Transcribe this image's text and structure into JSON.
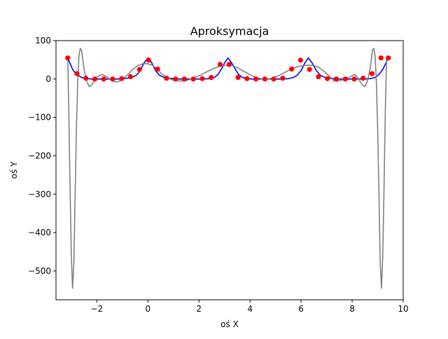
{
  "chart_data": {
    "type": "line",
    "title": "Aproksymacja",
    "xlabel": "oś X",
    "ylabel": "oś Y",
    "xlim": [
      -3.6,
      10.0
    ],
    "ylim": [
      -575,
      100
    ],
    "x_ticks": [
      -2,
      0,
      2,
      4,
      6,
      8,
      10
    ],
    "x_tick_labels": [
      "−2",
      "0",
      "2",
      "4",
      "6",
      "8",
      "10"
    ],
    "y_ticks": [
      100,
      0,
      -100,
      -200,
      -300,
      -400,
      -500
    ],
    "y_tick_labels": [
      "100",
      "0",
      "−100",
      "−200",
      "−300",
      "−400",
      "−500"
    ],
    "grid": false,
    "series": [
      {
        "kind": "line",
        "color": "#0000ff",
        "x": [
          -3.14,
          -2.95,
          -2.8,
          -2.6,
          -2.4,
          -2.2,
          -2.0,
          -1.8,
          -1.6,
          -1.4,
          -1.2,
          -1.0,
          -0.8,
          -0.6,
          -0.45,
          -0.3,
          -0.15,
          0.0,
          0.15,
          0.3,
          0.45,
          0.6,
          0.8,
          1.0,
          1.2,
          1.4,
          1.6,
          1.8,
          2.0,
          2.2,
          2.4,
          2.6,
          2.75,
          2.9,
          3.0,
          3.14,
          3.28,
          3.4,
          3.55,
          3.7,
          3.9,
          4.1,
          4.3,
          4.5,
          4.7,
          4.9,
          5.1,
          5.3,
          5.5,
          5.7,
          5.85,
          6.0,
          6.15,
          6.28,
          6.43,
          6.6,
          6.75,
          6.9,
          7.1,
          7.3,
          7.5,
          7.7,
          7.9,
          8.1,
          8.3,
          8.5,
          8.7,
          8.9,
          9.05,
          9.2,
          9.42
        ],
        "y": [
          55,
          25,
          12,
          4,
          1,
          0,
          0,
          0,
          0,
          0,
          0,
          1,
          2,
          5,
          10,
          22,
          42,
          55,
          42,
          22,
          10,
          5,
          2,
          1,
          0,
          0,
          0,
          0,
          0,
          0,
          1,
          4,
          12,
          28,
          42,
          55,
          42,
          28,
          12,
          4,
          1,
          0,
          0,
          0,
          0,
          0,
          0,
          0,
          1,
          4,
          10,
          22,
          42,
          55,
          42,
          22,
          10,
          5,
          2,
          1,
          0,
          0,
          0,
          0,
          0,
          0,
          1,
          4,
          12,
          25,
          55
        ]
      },
      {
        "kind": "line",
        "color": "#808080",
        "x": [
          -3.14,
          -3.1,
          -3.05,
          -3.0,
          -2.95,
          -2.9,
          -2.85,
          -2.8,
          -2.75,
          -2.7,
          -2.65,
          -2.6,
          -2.55,
          -2.5,
          -2.4,
          -2.3,
          -2.2,
          -2.1,
          -2.0,
          -1.8,
          -1.6,
          -1.4,
          -1.2,
          -1.0,
          -0.8,
          -0.6,
          -0.4,
          -0.2,
          0.0,
          0.2,
          0.4,
          0.6,
          0.8,
          1.0,
          1.2,
          1.4,
          1.6,
          1.8,
          2.0,
          2.2,
          2.4,
          2.6,
          2.8,
          3.0,
          3.14,
          3.28,
          3.5,
          3.7,
          3.9,
          4.1,
          4.3,
          4.5,
          4.7,
          4.9,
          5.1,
          5.3,
          5.5,
          5.7,
          5.9,
          6.1,
          6.28,
          6.5,
          6.7,
          6.9,
          7.1,
          7.3,
          7.5,
          7.7,
          7.9,
          8.1,
          8.2,
          8.3,
          8.4,
          8.5,
          8.6,
          8.7,
          8.75,
          8.8,
          8.85,
          8.9,
          8.95,
          9.0,
          9.05,
          9.1,
          9.15,
          9.2,
          9.25,
          9.3,
          9.35,
          9.42
        ],
        "y": [
          55,
          -80,
          -280,
          -460,
          -545,
          -480,
          -300,
          -130,
          -10,
          60,
          80,
          75,
          50,
          25,
          -5,
          -20,
          -15,
          -5,
          5,
          12,
          5,
          -5,
          -8,
          0,
          10,
          25,
          35,
          40,
          40,
          35,
          22,
          10,
          2,
          -3,
          -5,
          -5,
          -2,
          3,
          8,
          15,
          22,
          28,
          33,
          35,
          36,
          35,
          30,
          22,
          15,
          8,
          3,
          0,
          0,
          3,
          8,
          15,
          22,
          28,
          33,
          35,
          36,
          35,
          30,
          20,
          8,
          -5,
          -5,
          0,
          5,
          12,
          5,
          -5,
          -15,
          -20,
          -5,
          25,
          50,
          75,
          80,
          60,
          -10,
          -130,
          -300,
          -480,
          -545,
          -460,
          -280,
          -80,
          55,
          55
        ]
      },
      {
        "kind": "markers",
        "color": "#ff0000",
        "x": [
          -3.14,
          -2.78,
          -2.43,
          -2.08,
          -1.73,
          -1.38,
          -1.03,
          -0.68,
          -0.33,
          0.03,
          0.38,
          0.73,
          1.08,
          1.43,
          1.78,
          2.13,
          2.48,
          2.83,
          3.18,
          3.53,
          3.88,
          4.23,
          4.58,
          4.93,
          5.28,
          5.63,
          5.98,
          6.33,
          6.68,
          7.03,
          7.38,
          7.73,
          8.08,
          8.43,
          8.78,
          9.13,
          9.42
        ],
        "y": [
          55,
          14,
          2,
          0,
          0,
          0,
          1,
          6,
          25,
          49,
          26,
          2,
          0,
          0,
          0,
          1,
          4,
          38,
          38,
          4,
          1,
          0,
          0,
          0,
          2,
          26,
          49,
          25,
          6,
          1,
          0,
          0,
          0,
          2,
          14,
          55,
          55
        ]
      }
    ]
  }
}
